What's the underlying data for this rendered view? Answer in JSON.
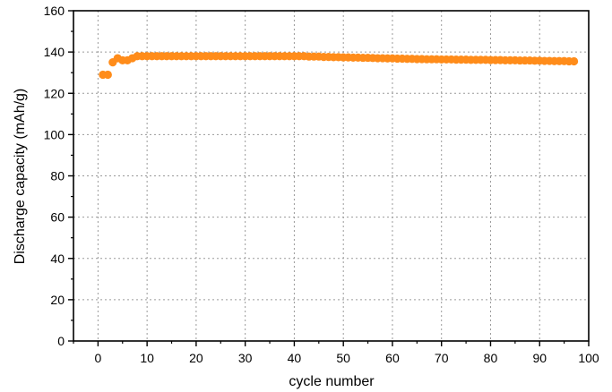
{
  "chart_data": {
    "type": "scatter",
    "xlabel": "cycle number",
    "ylabel": "Discharge capacity (mAh/g)",
    "xlim": [
      -5,
      100
    ],
    "ylim": [
      0,
      160
    ],
    "x_ticks": [
      0,
      10,
      20,
      30,
      40,
      50,
      60,
      70,
      80,
      90,
      100
    ],
    "y_ticks": [
      0,
      20,
      40,
      60,
      80,
      100,
      120,
      140,
      160
    ],
    "grid": true,
    "grid_style": "dotted",
    "marker_color": "#ff8c1a",
    "series": [
      {
        "x": [
          1,
          2,
          3,
          4,
          5,
          6,
          7,
          8,
          9,
          10,
          11,
          12,
          13,
          14,
          15,
          16,
          17,
          18,
          19,
          20,
          21,
          22,
          23,
          24,
          25,
          26,
          27,
          28,
          29,
          30,
          31,
          32,
          33,
          34,
          35,
          36,
          37,
          38,
          39,
          40,
          41,
          42,
          43,
          44,
          45,
          46,
          47,
          48,
          49,
          50,
          51,
          52,
          53,
          54,
          55,
          56,
          57,
          58,
          59,
          60,
          61,
          62,
          63,
          64,
          65,
          66,
          67,
          68,
          69,
          70,
          71,
          72,
          73,
          74,
          75,
          76,
          77,
          78,
          79,
          80,
          81,
          82,
          83,
          84,
          85,
          86,
          87,
          88,
          89,
          90,
          91,
          92,
          93,
          94,
          95,
          96,
          97
        ],
        "values": [
          129,
          129,
          135,
          137,
          136,
          136,
          137,
          138,
          138,
          138,
          138,
          138,
          138,
          138,
          138,
          138,
          138,
          138,
          138,
          138,
          138,
          138,
          138,
          138,
          138,
          138,
          138,
          138,
          138,
          138,
          138,
          138,
          138,
          138,
          138,
          138,
          138,
          138,
          138,
          138,
          138,
          138,
          137.8,
          137.8,
          137.8,
          137.6,
          137.6,
          137.5,
          137.5,
          137.4,
          137.4,
          137.3,
          137.3,
          137.2,
          137.2,
          137.1,
          137.0,
          137.0,
          136.9,
          136.9,
          136.8,
          136.8,
          136.7,
          136.7,
          136.6,
          136.6,
          136.5,
          136.5,
          136.5,
          136.4,
          136.4,
          136.4,
          136.3,
          136.3,
          136.3,
          136.2,
          136.2,
          136.2,
          136.2,
          136.1,
          136.1,
          136.1,
          136.0,
          136.0,
          136.0,
          135.9,
          135.9,
          135.9,
          135.8,
          135.8,
          135.7,
          135.7,
          135.6,
          135.6,
          135.6,
          135.5,
          135.5
        ]
      }
    ]
  }
}
